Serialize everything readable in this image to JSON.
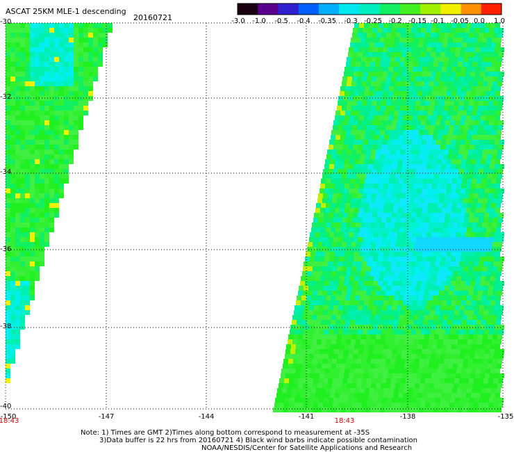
{
  "header": {
    "title": "ASCAT 25KM MLE-1 descending",
    "date": "20160721"
  },
  "colorbar": {
    "labels": [
      "-3.0",
      "-1.0",
      "-0.5",
      "-0.4",
      "-0.35",
      "-0.3",
      "-0.25",
      "-0.2",
      "-0.15",
      "-0.1",
      "-0.05",
      "0.0",
      "1.0"
    ],
    "colors": [
      "#1a0010",
      "#5a0090",
      "#3020d0",
      "#0060ff",
      "#00b0ff",
      "#00e8f0",
      "#00f0c0",
      "#10f060",
      "#40f020",
      "#a0f000",
      "#f0f000",
      "#ff9000",
      "#ff2000"
    ]
  },
  "map": {
    "lat_labels": [
      "-30",
      "-32",
      "-34",
      "-36",
      "-38",
      "-40"
    ],
    "lon_labels": [
      "-150",
      "-147",
      "-144",
      "-141",
      "-138",
      "-135"
    ],
    "time_labels": [
      "18:43",
      "18:43"
    ]
  },
  "footer": {
    "line1": "Note: 1) Times are GMT 2)Times along bottom correspond to measurement at -35S",
    "line2": "3)Data buffer is 22 hrs from 20160721 4) Black wind barbs indicate possible contamination",
    "line3": "NOAA/NESDIS/Center for Satellite Applications and Research"
  }
}
